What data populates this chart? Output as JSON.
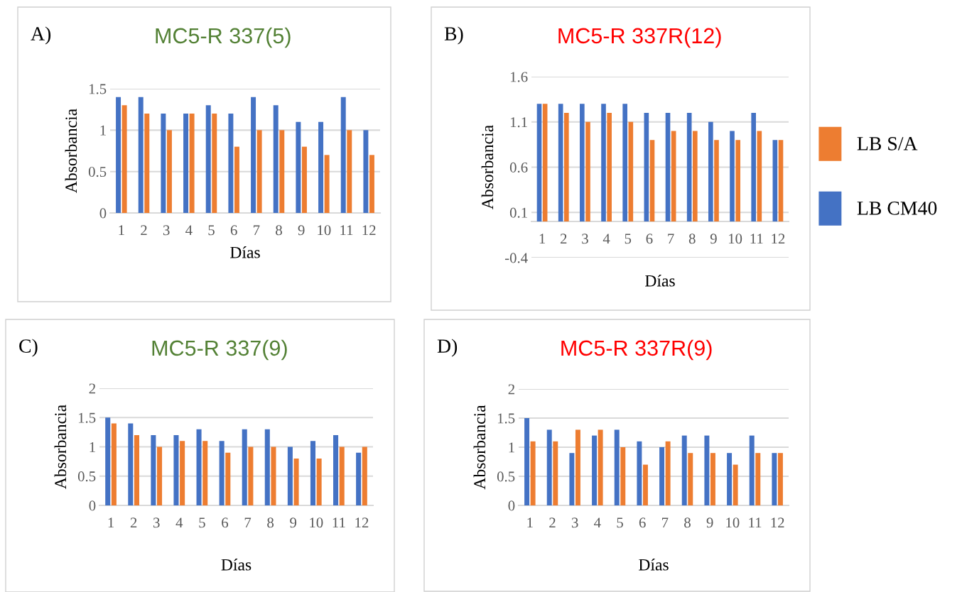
{
  "chart_data": [
    {
      "type": "bar",
      "title": "MC5-R 337(5)",
      "annotations": [
        "A)"
      ],
      "xlabel": "Días",
      "ylabel": "Absorbancia",
      "categories": [
        "1",
        "2",
        "3",
        "4",
        "5",
        "6",
        "7",
        "8",
        "9",
        "10",
        "11",
        "12"
      ],
      "ylim": [
        0,
        1.5
      ],
      "yticks": [
        0,
        0.5,
        1,
        1.5
      ],
      "grid": "y",
      "series": [
        {
          "color": "#4472c4",
          "values": [
            1.4,
            1.4,
            1.2,
            1.2,
            1.3,
            1.2,
            1.4,
            1.3,
            1.1,
            1.1,
            1.4,
            1.0
          ]
        },
        {
          "color": "#ed7d31",
          "values": [
            1.3,
            1.2,
            1.0,
            1.2,
            1.2,
            0.8,
            1.0,
            1.0,
            0.8,
            0.7,
            1.0,
            0.7
          ]
        }
      ]
    },
    {
      "type": "bar",
      "title": "MC5-R 337R(12)",
      "annotations": [
        "B)"
      ],
      "xlabel": "Días",
      "ylabel": "Absorbancia",
      "categories": [
        "1",
        "2",
        "3",
        "4",
        "5",
        "6",
        "7",
        "8",
        "9",
        "10",
        "11",
        "12"
      ],
      "ylim": [
        -0.4,
        1.6
      ],
      "yticks": [
        -0.4,
        0.1,
        0.6,
        1.1,
        1.6
      ],
      "grid": "y",
      "legend": "right",
      "series": [
        {
          "name": "LB CM40",
          "color": "#4472c4",
          "values": [
            1.3,
            1.3,
            1.3,
            1.3,
            1.3,
            1.2,
            1.2,
            1.2,
            1.1,
            1.0,
            1.2,
            0.9
          ]
        },
        {
          "name": "LB S/A",
          "color": "#ed7d31",
          "values": [
            1.3,
            1.2,
            1.1,
            1.2,
            1.1,
            0.9,
            1.0,
            1.0,
            0.9,
            0.9,
            1.0,
            0.9
          ]
        }
      ]
    },
    {
      "type": "bar",
      "title": "MC5-R 337(9)",
      "annotations": [
        "C)"
      ],
      "xlabel": "Días",
      "ylabel": "Absorbancia",
      "categories": [
        "1",
        "2",
        "3",
        "4",
        "5",
        "6",
        "7",
        "8",
        "9",
        "10",
        "11",
        "12"
      ],
      "ylim": [
        0,
        2
      ],
      "yticks": [
        0,
        0.5,
        1,
        1.5,
        2
      ],
      "grid": "y",
      "series": [
        {
          "color": "#4472c4",
          "values": [
            1.5,
            1.4,
            1.2,
            1.2,
            1.3,
            1.1,
            1.3,
            1.3,
            1.0,
            1.1,
            1.2,
            0.9
          ]
        },
        {
          "color": "#ed7d31",
          "values": [
            1.4,
            1.2,
            1.0,
            1.1,
            1.1,
            0.9,
            1.0,
            1.0,
            0.8,
            0.8,
            1.0,
            1.0
          ]
        }
      ]
    },
    {
      "type": "bar",
      "title": "MC5-R 337R(9)",
      "annotations": [
        "D)"
      ],
      "xlabel": "Días",
      "ylabel": "Absorbancia",
      "categories": [
        "1",
        "2",
        "3",
        "4",
        "5",
        "6",
        "7",
        "8",
        "9",
        "10",
        "11",
        "12"
      ],
      "ylim": [
        0,
        2
      ],
      "yticks": [
        0,
        0.5,
        1,
        1.5,
        2
      ],
      "grid": "y",
      "series": [
        {
          "color": "#4472c4",
          "values": [
            1.5,
            1.3,
            0.9,
            1.2,
            1.3,
            1.1,
            1.0,
            1.2,
            1.2,
            0.9,
            1.2,
            0.9
          ]
        },
        {
          "color": "#ed7d31",
          "values": [
            1.1,
            1.1,
            1.3,
            1.3,
            1.0,
            0.7,
            1.1,
            0.9,
            0.9,
            0.7,
            0.9,
            0.9
          ]
        }
      ]
    }
  ]
}
